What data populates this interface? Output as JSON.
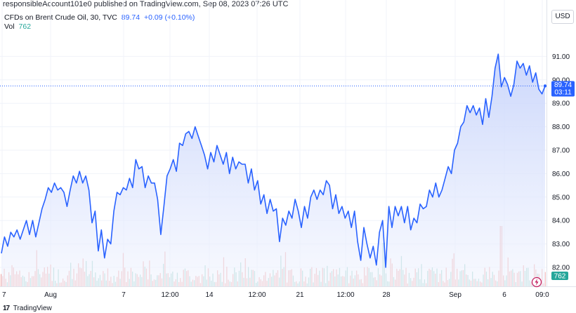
{
  "header": {
    "published_text": "responsibleAccount101e0 published on TradingView.com, Sep 08, 2023 07:26 UTC"
  },
  "legend": {
    "symbol_text": "CFDs on Brent Crude Oil, 30, TVC",
    "last_value": "89.74",
    "change_text": "+0.09 (+0.10%)",
    "vol_label": "Vol",
    "vol_value": "762"
  },
  "currency_button": "USD",
  "price_label": {
    "price": "89.74",
    "countdown": "03:11"
  },
  "volume_label": "762",
  "footer": {
    "logo": "17",
    "brand": "TradingView"
  },
  "colors": {
    "line": "#2962ff",
    "area_top": "#c5d2fb",
    "area_bottom": "#f2f5fe",
    "vol_up": "#9fd3cb",
    "vol_down": "#f2aaa8",
    "price_tag": "#2962ff",
    "vol_tag": "#26a69a"
  },
  "chart_data": {
    "type": "area",
    "ylim": [
      81.7,
      91.3
    ],
    "y_ticks": [
      "82.00",
      "83.00",
      "84.00",
      "85.00",
      "86.00",
      "87.00",
      "88.00",
      "89.00",
      "90.00",
      "91.00"
    ],
    "x_tick_labels": [
      "7",
      "Aug",
      "7",
      "12:00",
      "14",
      "12:00",
      "21",
      "12:00",
      "28",
      "Sep",
      "6",
      "09:0"
    ],
    "last_price": 89.74,
    "series": [
      {
        "values": [
          82.6,
          83.3,
          82.9,
          83.5,
          83.3,
          83.6,
          83.2,
          83.6,
          84.0,
          83.4,
          84.0,
          83.3,
          83.9,
          84.5,
          84.9,
          85.4,
          85.2,
          85.6,
          85.3,
          85.4,
          85.2,
          84.6,
          85.3,
          85.9,
          85.6,
          86.1,
          85.6,
          85.9,
          85.3,
          83.9,
          84.4,
          82.7,
          83.6,
          82.4,
          83.2,
          83.0,
          84.4,
          85.2,
          85.1,
          85.4,
          85.3,
          85.8,
          85.4,
          86.6,
          86.2,
          86.3,
          85.4,
          85.9,
          85.6,
          85.6,
          84.9,
          83.4,
          84.6,
          85.9,
          86.2,
          86.6,
          86.1,
          87.3,
          87.2,
          87.7,
          87.8,
          87.5,
          88.0,
          87.6,
          87.2,
          86.8,
          86.2,
          86.9,
          86.5,
          87.2,
          86.8,
          86.4,
          86.9,
          86.0,
          86.7,
          86.2,
          86.5,
          86.4,
          86.4,
          85.6,
          86.2,
          85.3,
          85.7,
          84.7,
          85.1,
          84.3,
          84.9,
          84.4,
          84.5,
          83.1,
          84.1,
          83.8,
          84.4,
          84.1,
          84.9,
          84.4,
          83.7,
          84.6,
          84.1,
          85.0,
          85.3,
          84.9,
          85.3,
          85.1,
          85.7,
          85.5,
          84.5,
          85.1,
          84.3,
          84.6,
          84.1,
          84.4,
          83.7,
          84.4,
          83.1,
          82.3,
          83.7,
          83.0,
          82.4,
          82.9,
          82.1,
          83.5,
          84.0,
          82.0,
          84.6,
          83.7,
          84.6,
          84.2,
          84.6,
          83.9,
          84.6,
          83.6,
          84.1,
          83.9,
          84.7,
          84.5,
          84.6,
          85.3,
          85.0,
          85.6,
          85.0,
          85.3,
          85.8,
          86.3,
          86.0,
          87.0,
          87.3,
          88.0,
          88.2,
          88.9,
          88.6,
          88.9,
          88.5,
          88.8,
          88.1,
          89.2,
          88.4,
          89.3,
          90.5,
          91.1,
          89.7,
          90.1,
          89.8,
          89.3,
          89.8,
          90.8,
          90.5,
          90.7,
          90.2,
          90.6,
          89.9,
          90.3,
          89.6,
          89.4,
          89.74
        ]
      }
    ],
    "volume": [
      {
        "v": 40,
        "up": true
      }
    ],
    "grid": true,
    "legend_position": "top-left"
  }
}
